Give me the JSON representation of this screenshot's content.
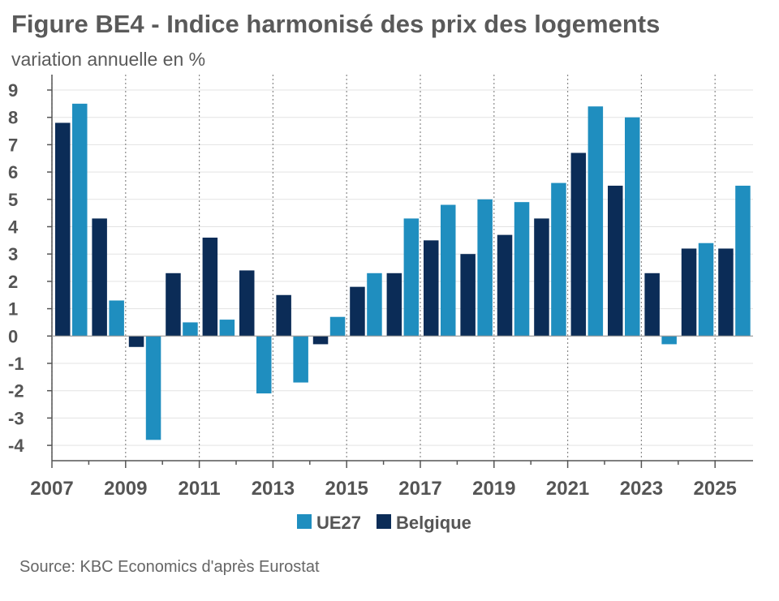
{
  "title": "Figure BE4 - Indice harmonisé des prix des logements",
  "subtitle": "variation annuelle en %",
  "source": "Source: KBC Economics d'après Eurostat",
  "colors": {
    "ue27": "#1f8ebf",
    "belgique": "#0b2c57",
    "grid": "#e3e3e3",
    "axis": "#555555"
  },
  "chart_data": {
    "type": "bar",
    "categories": [
      "2007",
      "2008",
      "2009",
      "2010",
      "2011",
      "2012",
      "2013",
      "2014",
      "2015",
      "2016",
      "2017",
      "2018",
      "2019",
      "2020",
      "2021",
      "2022",
      "2023",
      "2024",
      "2025"
    ],
    "x_tick_labels": [
      "2007",
      "2009",
      "2011",
      "2013",
      "2015",
      "2017",
      "2019",
      "2021",
      "2023",
      "2025"
    ],
    "series": [
      {
        "name": "Belgique",
        "color": "#0b2c57",
        "values": [
          7.8,
          4.3,
          -0.4,
          2.3,
          3.6,
          2.4,
          1.5,
          -0.3,
          1.8,
          2.3,
          3.5,
          3.0,
          3.7,
          4.3,
          6.7,
          5.5,
          2.3,
          3.2,
          3.2
        ]
      },
      {
        "name": "UE27",
        "color": "#1f8ebf",
        "values": [
          8.5,
          1.3,
          -3.8,
          0.5,
          0.6,
          -2.1,
          -1.7,
          0.7,
          2.3,
          4.3,
          4.8,
          5.0,
          4.9,
          5.6,
          8.4,
          8.0,
          -0.3,
          3.4,
          5.5
        ]
      }
    ],
    "legend": [
      "UE27",
      "Belgique"
    ],
    "legend_position": "bottom-center",
    "ylim": [
      -4,
      9
    ],
    "yticks": [
      -4,
      -3,
      -2,
      -1,
      0,
      1,
      2,
      3,
      4,
      5,
      6,
      7,
      8,
      9
    ],
    "grid": true
  }
}
